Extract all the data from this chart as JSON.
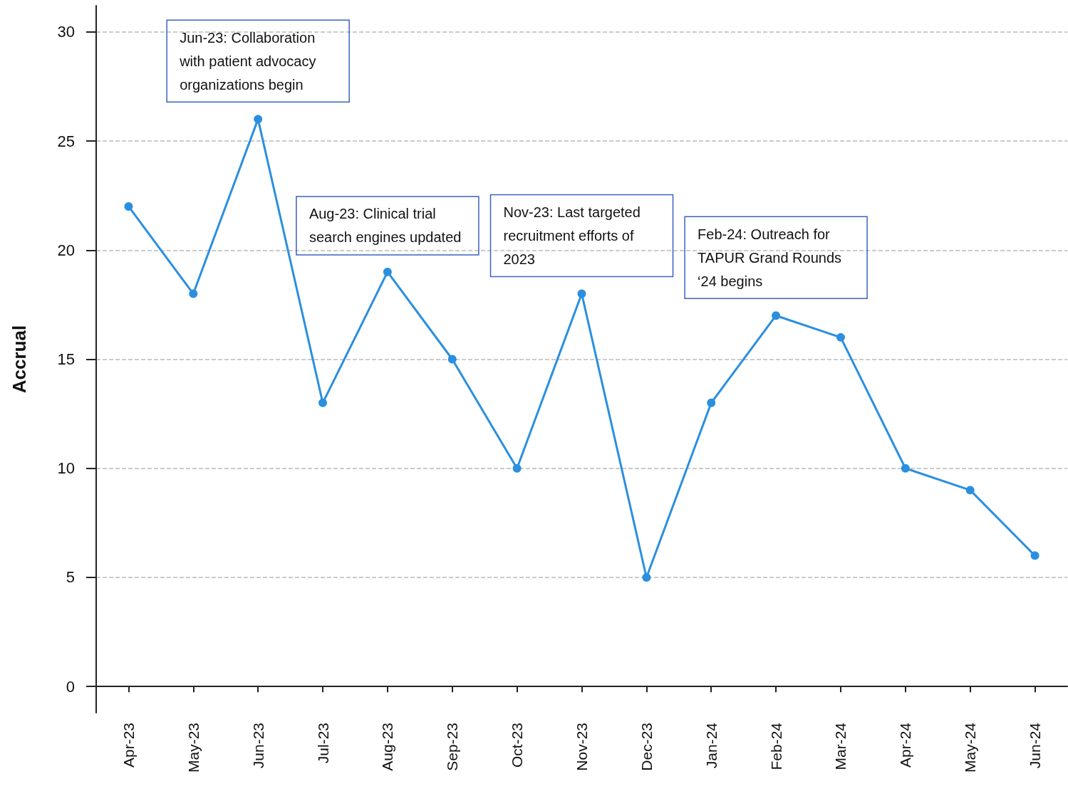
{
  "chart_data": {
    "type": "line",
    "ylabel": "Accrual",
    "categories": [
      "Apr-23",
      "May-23",
      "Jun-23",
      "Jul-23",
      "Aug-23",
      "Sep-23",
      "Oct-23",
      "Nov-23",
      "Dec-23",
      "Jan-24",
      "Feb-24",
      "Mar-24",
      "Apr-24",
      "May-24",
      "Jun-24"
    ],
    "series": [
      {
        "color": "#2b8fe0",
        "values": [
          22,
          18,
          26,
          13,
          19,
          15,
          10,
          18,
          5,
          13,
          17,
          16,
          10,
          9,
          6
        ]
      }
    ],
    "ylim": [
      -1.2,
      31.2
    ],
    "yticks": [
      0,
      5,
      10,
      15,
      20,
      25,
      30
    ],
    "grid": "y",
    "marker": "circle",
    "line_style": "solid",
    "annotations": [
      {
        "text": "Jun-23: Collaboration with patient advocacy organizations begin",
        "x": "Jun-23",
        "y": 26
      },
      {
        "text": "Aug-23: Clinical trial search engines updated",
        "x": "Aug-23",
        "y": 19
      },
      {
        "text": "Nov-23: Last targeted recruitment efforts of 2023",
        "x": "Nov-23",
        "y": 18
      },
      {
        "text": "Feb-24: Outreach for TAPUR Grand Rounds ‘24 begins",
        "x": "Feb-24",
        "y": 17
      }
    ]
  }
}
